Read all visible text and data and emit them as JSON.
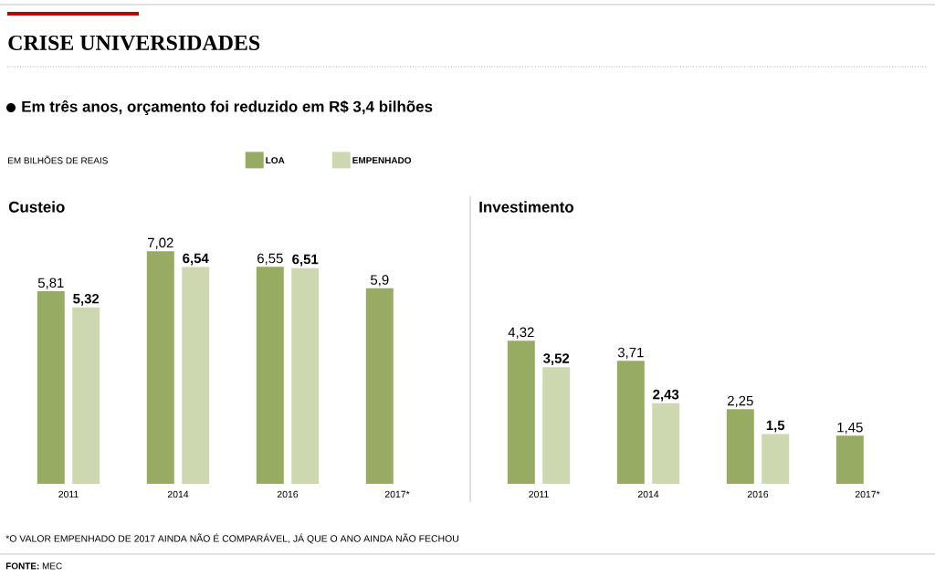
{
  "chart_data": [
    {
      "type": "bar",
      "title": "Custeio",
      "legend": "top",
      "annotations": [
        "CRISE UNIVERSIDADES",
        "Em três anos, orçamento foi reduzido em R$ 3,4 bilhões",
        "EM BILHÕES DE REAIS",
        "*O VALOR EMPENHADO DE 2017 AINDA NÃO É COMPARÁVEL, JÁ QUE O ANO AINDA NÃO FECHOU",
        "**FONTE:** MEC"
      ],
      "categories": [
        "2011",
        "2014",
        "2016",
        "2017*"
      ],
      "series": [
        {
          "name": "LOA",
          "color": "#98ab63",
          "values": [
            5.81,
            7.02,
            6.55,
            5.9
          ],
          "value_labels": [
            "5,81",
            "7,02",
            "6,55",
            "5,9"
          ]
        },
        {
          "name": "EMPENHADO",
          "color": "#cdd8b1",
          "values": [
            5.32,
            6.54,
            6.51,
            null
          ],
          "value_labels": [
            "5,32",
            "6,54",
            "6,51",
            null
          ]
        }
      ]
    },
    {
      "type": "bar",
      "title": "Investimento",
      "categories": [
        "2011",
        "2014",
        "2016",
        "2017*"
      ],
      "series": [
        {
          "color": "#98ab63",
          "values": [
            4.32,
            3.71,
            2.25,
            1.45
          ],
          "value_labels": [
            "4,32",
            "3,71",
            "2,25",
            "1,45"
          ]
        },
        {
          "color": "#cdd8b1",
          "values": [
            3.52,
            2.43,
            1.5,
            null
          ],
          "value_labels": [
            "3,52",
            "2,43",
            "1,5",
            null
          ]
        }
      ]
    }
  ]
}
